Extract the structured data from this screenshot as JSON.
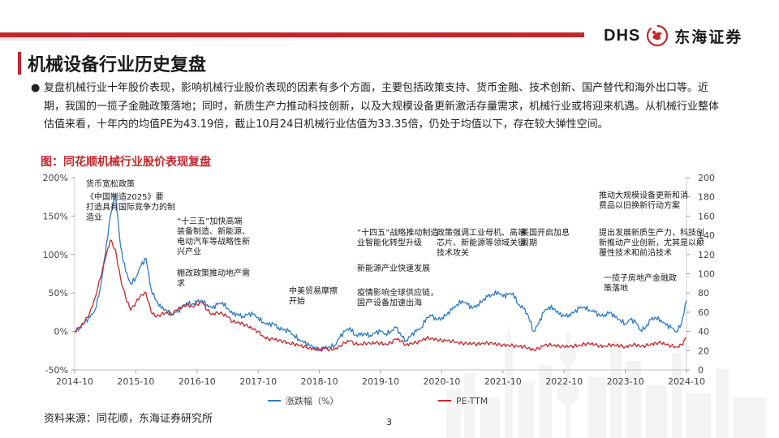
{
  "header": {
    "brand_code": "DHS",
    "brand_name": "东海证券"
  },
  "page_title": "机械设备行业历史复盘",
  "bullet_text": "复盘机械行业十年股价表现，影响机械行业股价表现的因素有多个方面，主要包括政策支持、货币金融、技术创新、国产替代和海外出口等。近期，我国的一揽子金融政策落地；同时，新质生产力推动科技创新，以及大规模设备更新激活存量需求，机械行业或将迎来机遇。从机械行业整体估值来看，十年内的均值PE为43.19倍，截止10月24日机械行业估值为33.35倍，仍处于均值以下，存在较大弹性空间。",
  "figure_title": "图：同花顺机械行业股价表现复盘",
  "source": "资料来源：同花顺，东海证券研究所",
  "page_number": "3",
  "colors": {
    "accent": "#c3272b",
    "series_blue": "#2f7bc4",
    "series_red": "#c3272b"
  },
  "chart_data": {
    "type": "line",
    "x_ticks": [
      "2014-10",
      "2015-10",
      "2016-10",
      "2017-10",
      "2018-10",
      "2019-10",
      "2020-10",
      "2021-10",
      "2022-10",
      "2023-10",
      "2024-10"
    ],
    "y_left_ticks": [
      "200%",
      "150%",
      "100%",
      "50%",
      "0%",
      "-50%"
    ],
    "y_left_range": [
      -50,
      200
    ],
    "y_right_ticks": [
      "200",
      "180",
      "160",
      "140",
      "120",
      "100",
      "80",
      "60",
      "40",
      "20",
      "0"
    ],
    "y_right_range": [
      0,
      200
    ],
    "legend_position": "bottom",
    "series": [
      {
        "name": "涨跌幅（%）",
        "axis": "left",
        "color": "#2f7bc4",
        "points": [
          [
            "2014-10",
            0
          ],
          [
            "2014-11",
            5
          ],
          [
            "2014-12",
            12
          ],
          [
            "2015-01",
            18
          ],
          [
            "2015-02",
            28
          ],
          [
            "2015-03",
            55
          ],
          [
            "2015-04",
            100
          ],
          [
            "2015-05",
            150
          ],
          [
            "2015-06",
            180
          ],
          [
            "2015-07",
            110
          ],
          [
            "2015-08",
            78
          ],
          [
            "2015-09",
            62
          ],
          [
            "2015-10",
            70
          ],
          [
            "2015-11",
            85
          ],
          [
            "2015-12",
            95
          ],
          [
            "2016-01",
            55
          ],
          [
            "2016-02",
            40
          ],
          [
            "2016-03",
            30
          ],
          [
            "2016-04",
            28
          ],
          [
            "2016-05",
            22
          ],
          [
            "2016-06",
            25
          ],
          [
            "2016-07",
            30
          ],
          [
            "2016-08",
            38
          ],
          [
            "2016-09",
            35
          ],
          [
            "2016-10",
            38
          ],
          [
            "2016-11",
            40
          ],
          [
            "2016-12",
            35
          ],
          [
            "2017-01",
            30
          ],
          [
            "2017-02",
            35
          ],
          [
            "2017-03",
            38
          ],
          [
            "2017-04",
            30
          ],
          [
            "2017-05",
            22
          ],
          [
            "2017-06",
            22
          ],
          [
            "2017-07",
            20
          ],
          [
            "2017-08",
            22
          ],
          [
            "2017-09",
            22
          ],
          [
            "2017-10",
            18
          ],
          [
            "2017-11",
            12
          ],
          [
            "2017-12",
            8
          ],
          [
            "2018-01",
            10
          ],
          [
            "2018-02",
            5
          ],
          [
            "2018-03",
            2
          ],
          [
            "2018-04",
            0
          ],
          [
            "2018-05",
            -5
          ],
          [
            "2018-06",
            -10
          ],
          [
            "2018-07",
            -15
          ],
          [
            "2018-08",
            -18
          ],
          [
            "2018-09",
            -20
          ],
          [
            "2018-10",
            -25
          ],
          [
            "2018-11",
            -22
          ],
          [
            "2018-12",
            -20
          ],
          [
            "2019-01",
            -18
          ],
          [
            "2019-02",
            -8
          ],
          [
            "2019-03",
            0
          ],
          [
            "2019-04",
            5
          ],
          [
            "2019-05",
            -5
          ],
          [
            "2019-06",
            -5
          ],
          [
            "2019-07",
            -3
          ],
          [
            "2019-08",
            -5
          ],
          [
            "2019-09",
            -2
          ],
          [
            "2019-10",
            0
          ],
          [
            "2019-11",
            -3
          ],
          [
            "2019-12",
            0
          ],
          [
            "2020-01",
            5
          ],
          [
            "2020-02",
            -5
          ],
          [
            "2020-03",
            -12
          ],
          [
            "2020-04",
            -5
          ],
          [
            "2020-05",
            0
          ],
          [
            "2020-06",
            5
          ],
          [
            "2020-07",
            18
          ],
          [
            "2020-08",
            20
          ],
          [
            "2020-09",
            15
          ],
          [
            "2020-10",
            18
          ],
          [
            "2020-11",
            22
          ],
          [
            "2020-12",
            28
          ],
          [
            "2021-01",
            35
          ],
          [
            "2021-02",
            40
          ],
          [
            "2021-03",
            35
          ],
          [
            "2021-04",
            30
          ],
          [
            "2021-05",
            35
          ],
          [
            "2021-06",
            40
          ],
          [
            "2021-07",
            45
          ],
          [
            "2021-08",
            48
          ],
          [
            "2021-09",
            52
          ],
          [
            "2021-10",
            45
          ],
          [
            "2021-11",
            48
          ],
          [
            "2021-12",
            50
          ],
          [
            "2022-01",
            35
          ],
          [
            "2022-02",
            30
          ],
          [
            "2022-03",
            20
          ],
          [
            "2022-04",
            0
          ],
          [
            "2022-05",
            10
          ],
          [
            "2022-06",
            25
          ],
          [
            "2022-07",
            32
          ],
          [
            "2022-08",
            30
          ],
          [
            "2022-09",
            22
          ],
          [
            "2022-10",
            20
          ],
          [
            "2022-11",
            22
          ],
          [
            "2022-12",
            25
          ],
          [
            "2023-01",
            30
          ],
          [
            "2023-02",
            32
          ],
          [
            "2023-03",
            28
          ],
          [
            "2023-04",
            25
          ],
          [
            "2023-05",
            20
          ],
          [
            "2023-06",
            22
          ],
          [
            "2023-07",
            25
          ],
          [
            "2023-08",
            18
          ],
          [
            "2023-09",
            15
          ],
          [
            "2023-10",
            10
          ],
          [
            "2023-11",
            15
          ],
          [
            "2023-12",
            12
          ],
          [
            "2024-01",
            2
          ],
          [
            "2024-02",
            5
          ],
          [
            "2024-03",
            15
          ],
          [
            "2024-04",
            18
          ],
          [
            "2024-05",
            15
          ],
          [
            "2024-06",
            8
          ],
          [
            "2024-07",
            5
          ],
          [
            "2024-08",
            0
          ],
          [
            "2024-09",
            10
          ],
          [
            "2024-10",
            40
          ]
        ]
      },
      {
        "name": "PE-TTM",
        "axis": "right",
        "color": "#c3272b",
        "points": [
          [
            "2014-10",
            40
          ],
          [
            "2014-11",
            44
          ],
          [
            "2014-12",
            50
          ],
          [
            "2015-01",
            60
          ],
          [
            "2015-02",
            75
          ],
          [
            "2015-03",
            95
          ],
          [
            "2015-04",
            115
          ],
          [
            "2015-05",
            135
          ],
          [
            "2015-06",
            125
          ],
          [
            "2015-07",
            95
          ],
          [
            "2015-08",
            75
          ],
          [
            "2015-09",
            62
          ],
          [
            "2015-10",
            70
          ],
          [
            "2015-11",
            78
          ],
          [
            "2015-12",
            80
          ],
          [
            "2016-01",
            60
          ],
          [
            "2016-02",
            55
          ],
          [
            "2016-03",
            58
          ],
          [
            "2016-04",
            60
          ],
          [
            "2016-05",
            58
          ],
          [
            "2016-06",
            62
          ],
          [
            "2016-07",
            65
          ],
          [
            "2016-08",
            68
          ],
          [
            "2016-09",
            66
          ],
          [
            "2016-10",
            68
          ],
          [
            "2016-11",
            70
          ],
          [
            "2016-12",
            62
          ],
          [
            "2017-01",
            58
          ],
          [
            "2017-02",
            60
          ],
          [
            "2017-03",
            58
          ],
          [
            "2017-04",
            55
          ],
          [
            "2017-05",
            50
          ],
          [
            "2017-06",
            50
          ],
          [
            "2017-07",
            48
          ],
          [
            "2017-08",
            45
          ],
          [
            "2017-09",
            42
          ],
          [
            "2017-10",
            40
          ],
          [
            "2017-11",
            35
          ],
          [
            "2017-12",
            32
          ],
          [
            "2018-01",
            32
          ],
          [
            "2018-02",
            30
          ],
          [
            "2018-03",
            30
          ],
          [
            "2018-04",
            28
          ],
          [
            "2018-05",
            27
          ],
          [
            "2018-06",
            25
          ],
          [
            "2018-07",
            24
          ],
          [
            "2018-08",
            23
          ],
          [
            "2018-09",
            22
          ],
          [
            "2018-10",
            21
          ],
          [
            "2018-11",
            22
          ],
          [
            "2018-12",
            21
          ],
          [
            "2019-01",
            22
          ],
          [
            "2019-02",
            25
          ],
          [
            "2019-03",
            28
          ],
          [
            "2019-04",
            30
          ],
          [
            "2019-05",
            27
          ],
          [
            "2019-06",
            27
          ],
          [
            "2019-07",
            28
          ],
          [
            "2019-08",
            27
          ],
          [
            "2019-09",
            28
          ],
          [
            "2019-10",
            28
          ],
          [
            "2019-11",
            27
          ],
          [
            "2019-12",
            28
          ],
          [
            "2020-01",
            32
          ],
          [
            "2020-02",
            30
          ],
          [
            "2020-03",
            26
          ],
          [
            "2020-04",
            28
          ],
          [
            "2020-05",
            28
          ],
          [
            "2020-06",
            30
          ],
          [
            "2020-07",
            33
          ],
          [
            "2020-08",
            33
          ],
          [
            "2020-09",
            32
          ],
          [
            "2020-10",
            30
          ],
          [
            "2020-11",
            30
          ],
          [
            "2020-12",
            30
          ],
          [
            "2021-01",
            29
          ],
          [
            "2021-02",
            28
          ],
          [
            "2021-03",
            27
          ],
          [
            "2021-04",
            27
          ],
          [
            "2021-05",
            27
          ],
          [
            "2021-06",
            28
          ],
          [
            "2021-07",
            28
          ],
          [
            "2021-08",
            27
          ],
          [
            "2021-09",
            26
          ],
          [
            "2021-10",
            26
          ],
          [
            "2021-11",
            26
          ],
          [
            "2021-12",
            25
          ],
          [
            "2022-01",
            24
          ],
          [
            "2022-02",
            24
          ],
          [
            "2022-03",
            23
          ],
          [
            "2022-04",
            21
          ],
          [
            "2022-05",
            22
          ],
          [
            "2022-06",
            25
          ],
          [
            "2022-07",
            26
          ],
          [
            "2022-08",
            26
          ],
          [
            "2022-09",
            25
          ],
          [
            "2022-10",
            24
          ],
          [
            "2022-11",
            24
          ],
          [
            "2022-12",
            25
          ],
          [
            "2023-01",
            26
          ],
          [
            "2023-02",
            27
          ],
          [
            "2023-03",
            27
          ],
          [
            "2023-04",
            26
          ],
          [
            "2023-05",
            25
          ],
          [
            "2023-06",
            25
          ],
          [
            "2023-07",
            26
          ],
          [
            "2023-08",
            25
          ],
          [
            "2023-09",
            25
          ],
          [
            "2023-10",
            24
          ],
          [
            "2023-11",
            26
          ],
          [
            "2023-12",
            26
          ],
          [
            "2024-01",
            24
          ],
          [
            "2024-02",
            25
          ],
          [
            "2024-03",
            27
          ],
          [
            "2024-04",
            28
          ],
          [
            "2024-05",
            28
          ],
          [
            "2024-06",
            26
          ],
          [
            "2024-07",
            25
          ],
          [
            "2024-08",
            24
          ],
          [
            "2024-09",
            26
          ],
          [
            "2024-10",
            33.35
          ]
        ]
      }
    ],
    "annotations": [
      "货币宽松政策",
      "《中国制造2025》要打造具有国际竞争力的制造业",
      "“十三五”加快高端装备制造、新能源、电动汽车等战略性新兴产业",
      "棚改政策推动地产需求",
      "中美贸易摩擦开始",
      "“十四五”战略推动制造业智能化转型升级",
      "新能源产业快速发展",
      "疫情影响全球供应链，国产设备加速出海",
      "政策强调工业母机、高端芯片、新能源等领域关键技术攻关",
      "美国开启加息周期",
      "推动大规模设备更新和消费品以旧换新行动方案",
      "提出发展新质生产力，科技创新推动产业创新，尤其是以颠覆性技术和前沿技术",
      "一揽子房地产金融政策落地"
    ]
  }
}
